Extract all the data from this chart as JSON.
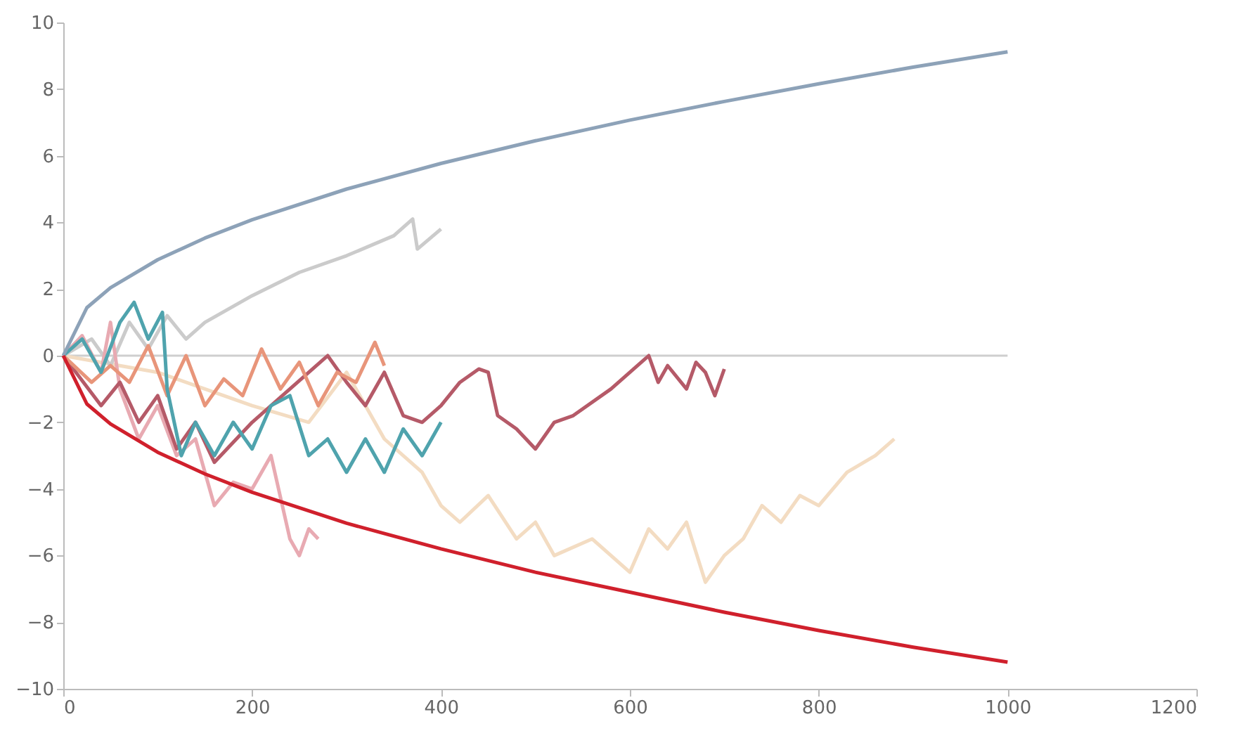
{
  "chart_data": {
    "type": "line",
    "xlim": [
      0,
      1200
    ],
    "xticks": [
      0,
      200,
      400,
      600,
      800,
      1000,
      1200
    ],
    "ylim": [
      -10,
      10
    ],
    "yticks": [
      -10,
      -8,
      -6,
      -4,
      -2,
      0,
      2,
      4,
      6,
      8,
      10
    ],
    "grid": false,
    "legend": false,
    "marker": "none",
    "line_style": "solid",
    "ref_lines": [
      {
        "axis": "y",
        "value": 0,
        "color": "#cfcfcf"
      }
    ],
    "series": [
      {
        "color": "#f3dcc2",
        "x": [
          0,
          100,
          200,
          260,
          300,
          340,
          380,
          400,
          420,
          450,
          480,
          500,
          520,
          560,
          600,
          620,
          640,
          660,
          680,
          700,
          720,
          740,
          760,
          780,
          800,
          830,
          860,
          880
        ],
        "values": [
          0,
          -0.5,
          -1.5,
          -2.0,
          -0.5,
          -2.5,
          -3.5,
          -4.5,
          -5.0,
          -4.2,
          -5.5,
          -5.0,
          -6.0,
          -5.5,
          -6.5,
          -5.2,
          -5.8,
          -5.0,
          -6.8,
          -6.0,
          -5.5,
          -4.5,
          -5.0,
          -4.2,
          -4.5,
          -3.5,
          -3.0,
          -2.5
        ]
      },
      {
        "color": "#cbcbcb",
        "x": [
          0,
          30,
          50,
          70,
          90,
          110,
          130,
          150,
          200,
          250,
          300,
          350,
          370,
          375,
          400
        ],
        "values": [
          0,
          0.5,
          -0.3,
          1.0,
          0.2,
          1.2,
          0.5,
          1.0,
          1.8,
          2.5,
          3.0,
          3.6,
          4.1,
          3.2,
          3.8
        ]
      },
      {
        "color": "#e8aab2",
        "x": [
          0,
          20,
          40,
          50,
          60,
          80,
          100,
          120,
          140,
          160,
          180,
          200,
          220,
          240,
          250,
          260,
          270
        ],
        "values": [
          0,
          0.6,
          -0.5,
          1.0,
          -1.0,
          -2.5,
          -1.5,
          -3.0,
          -2.5,
          -4.5,
          -3.8,
          -4.0,
          -3.0,
          -5.5,
          -6.0,
          -5.2,
          -5.5
        ]
      },
      {
        "color": "#b55a68",
        "x": [
          0,
          40,
          60,
          80,
          100,
          120,
          140,
          160,
          200,
          240,
          280,
          300,
          320,
          340,
          360,
          380,
          400,
          420,
          440,
          450,
          460,
          480,
          500,
          520,
          540,
          580,
          620,
          630,
          640,
          660,
          670,
          680,
          690,
          700
        ],
        "values": [
          0,
          -1.5,
          -0.8,
          -2.0,
          -1.2,
          -2.8,
          -2.0,
          -3.2,
          -2.0,
          -1.0,
          0,
          -0.8,
          -1.5,
          -0.5,
          -1.8,
          -2.0,
          -1.5,
          -0.8,
          -0.4,
          -0.5,
          -1.8,
          -2.2,
          -2.8,
          -2.0,
          -1.8,
          -1.0,
          0,
          -0.8,
          -0.3,
          -1.0,
          -0.2,
          -0.5,
          -1.2,
          -0.4
        ]
      },
      {
        "color": "#e8957a",
        "x": [
          0,
          30,
          50,
          70,
          90,
          110,
          130,
          150,
          170,
          190,
          210,
          230,
          250,
          270,
          290,
          310,
          330,
          340
        ],
        "values": [
          0,
          -0.8,
          -0.3,
          -0.8,
          0.3,
          -1.2,
          0,
          -1.5,
          -0.7,
          -1.2,
          0.2,
          -1.0,
          -0.2,
          -1.5,
          -0.5,
          -0.8,
          0.4,
          -0.3
        ]
      },
      {
        "color": "#4fa3ad",
        "x": [
          0,
          20,
          40,
          60,
          75,
          90,
          105,
          110,
          125,
          140,
          160,
          180,
          200,
          220,
          240,
          260,
          280,
          300,
          320,
          340,
          360,
          380,
          400
        ],
        "values": [
          0,
          0.5,
          -0.5,
          1.0,
          1.6,
          0.5,
          1.3,
          -1.0,
          -3.0,
          -2.0,
          -3.0,
          -2.0,
          -2.8,
          -1.5,
          -1.2,
          -3.0,
          -2.5,
          -3.5,
          -2.5,
          -3.5,
          -2.2,
          -3.0,
          -2.0
        ]
      },
      {
        "color": "#8da2b8",
        "x": [
          0,
          25,
          50,
          100,
          150,
          200,
          300,
          400,
          500,
          600,
          700,
          800,
          900,
          1000
        ],
        "values": [
          0,
          1.44,
          2.04,
          2.88,
          3.53,
          4.08,
          5.0,
          5.77,
          6.45,
          7.07,
          7.63,
          8.16,
          8.66,
          9.12
        ]
      },
      {
        "color": "#d0202c",
        "x": [
          0,
          25,
          50,
          100,
          150,
          200,
          300,
          400,
          500,
          600,
          700,
          800,
          900,
          1000
        ],
        "values": [
          0,
          -1.45,
          -2.05,
          -2.9,
          -3.55,
          -4.1,
          -5.03,
          -5.8,
          -6.5,
          -7.1,
          -7.7,
          -8.25,
          -8.75,
          -9.2
        ]
      }
    ]
  }
}
